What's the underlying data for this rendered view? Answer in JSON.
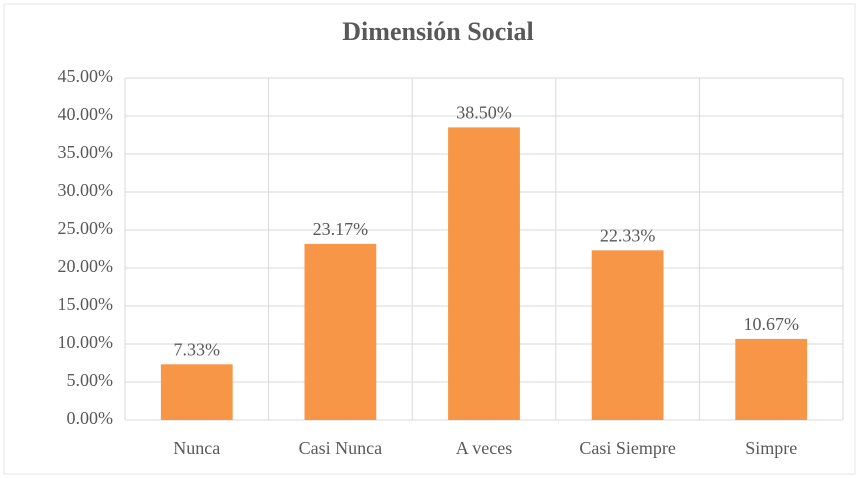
{
  "chart_data": {
    "type": "bar",
    "title": "Dimensión Social",
    "categories": [
      "Nunca",
      "Casi Nunca",
      "A veces",
      "Casi Siempre",
      "Simpre"
    ],
    "values": [
      7.33,
      23.17,
      38.5,
      22.33,
      10.67
    ],
    "value_labels": [
      "7.33%",
      "23.17%",
      "38.50%",
      "22.33%",
      "10.67%"
    ],
    "color": "#f79646",
    "ylim": [
      0,
      45
    ],
    "yticks": [
      {
        "value": 0,
        "label": "0.00%"
      },
      {
        "value": 5,
        "label": "5.00%"
      },
      {
        "value": 10,
        "label": "10.00%"
      },
      {
        "value": 15,
        "label": "15.00%"
      },
      {
        "value": 20,
        "label": "20.00%"
      },
      {
        "value": 25,
        "label": "25.00%"
      },
      {
        "value": 30,
        "label": "30.00%"
      },
      {
        "value": 35,
        "label": "35.00%"
      },
      {
        "value": 40,
        "label": "40.00%"
      },
      {
        "value": 45,
        "label": "45.00%"
      }
    ],
    "grid": true
  }
}
